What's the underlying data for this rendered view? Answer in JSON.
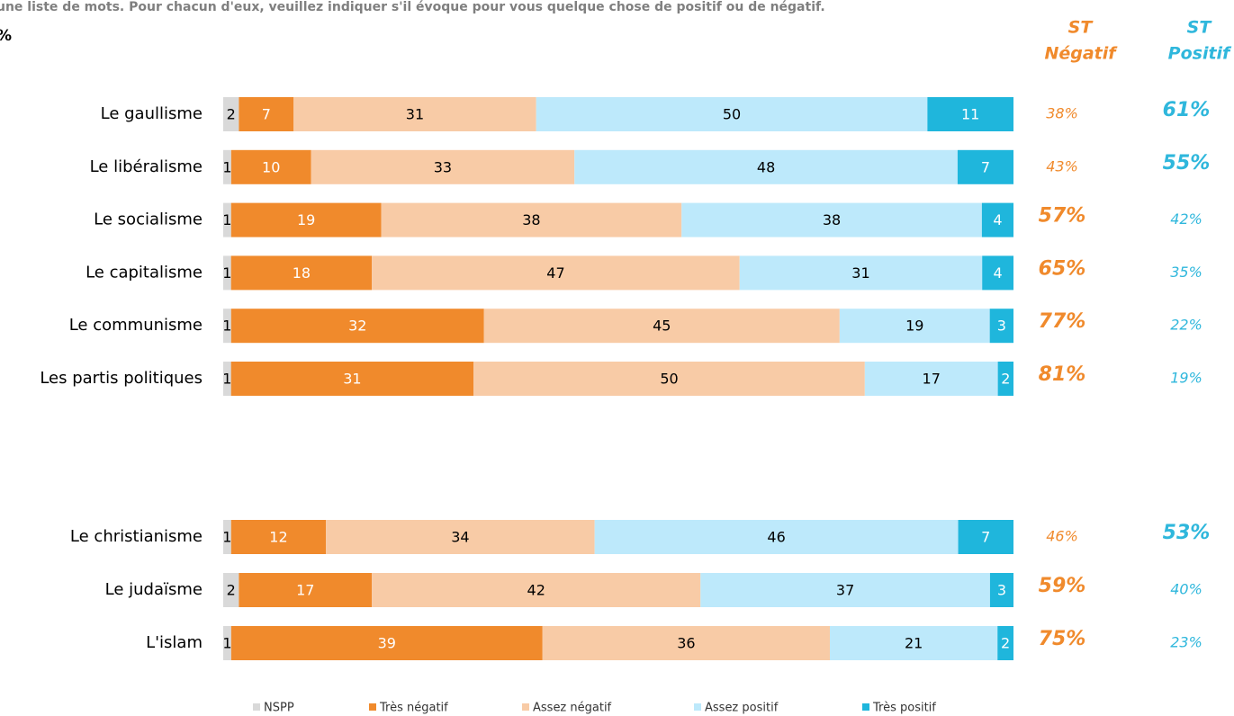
{
  "chart_data": {
    "type": "stacked-bar-horizontal",
    "title": "une liste de mots. Pour chacun d'eux, veuillez indiquer s'il évoque pour vous quelque chose de positif ou de négatif.",
    "unit_label": "%",
    "categories": [
      "Le gaullisme",
      "Le libéralisme",
      "Le socialisme",
      "Le capitalisme",
      "Le communisme",
      "Les partis politiques",
      "Le christianisme",
      "Le judaïsme",
      "L'islam"
    ],
    "series": [
      {
        "name": "NSPP",
        "color": "#d9d9d9",
        "values": [
          2,
          1,
          1,
          1,
          1,
          1,
          1,
          2,
          1
        ]
      },
      {
        "name": "Très négatif",
        "color": "#f08a2c",
        "values": [
          7,
          10,
          19,
          18,
          32,
          31,
          12,
          17,
          39
        ]
      },
      {
        "name": "Assez négatif",
        "color": "#f8cba6",
        "values": [
          31,
          33,
          38,
          47,
          45,
          50,
          34,
          42,
          36
        ]
      },
      {
        "name": "Assez positif",
        "color": "#bde9fb",
        "values": [
          50,
          48,
          38,
          31,
          19,
          17,
          46,
          37,
          21
        ]
      },
      {
        "name": "Très positif",
        "color": "#1fb6dc",
        "values": [
          11,
          7,
          4,
          4,
          3,
          2,
          7,
          3,
          2
        ]
      }
    ],
    "summary_columns": [
      {
        "label_top": "ST",
        "label": "Négatif",
        "color": "#f08a2c",
        "values": [
          38,
          43,
          57,
          65,
          77,
          81,
          46,
          59,
          75
        ],
        "value_labels": [
          "38%",
          "43%",
          "57%",
          "65%",
          "77%",
          "81%",
          "46%",
          "59%",
          "75%"
        ]
      },
      {
        "label_top": "ST",
        "label": "Positif",
        "color": "#2fb7dc",
        "values": [
          61,
          55,
          42,
          35,
          22,
          19,
          53,
          40,
          23
        ],
        "value_labels": [
          "61%",
          "55%",
          "42%",
          "35%",
          "22%",
          "19%",
          "53%",
          "40%",
          "23%"
        ]
      }
    ]
  }
}
